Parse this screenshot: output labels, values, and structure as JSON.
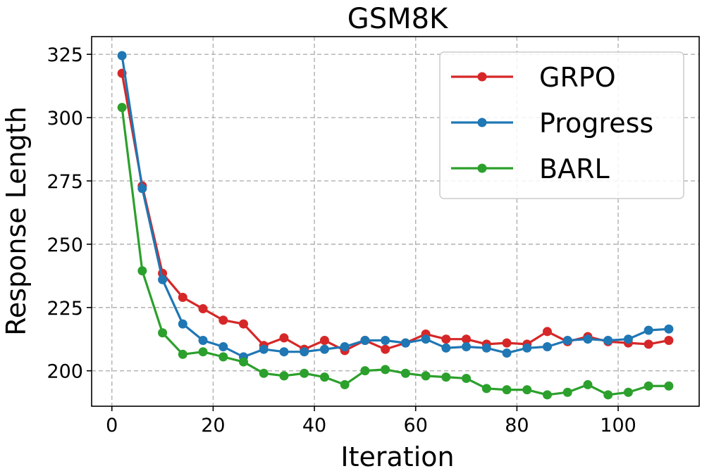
{
  "chart_data": {
    "type": "line",
    "title": "GSM8K",
    "xlabel": "Iteration",
    "ylabel": "Response Length",
    "xlim": [
      -4,
      116
    ],
    "ylim": [
      186,
      332
    ],
    "xticks": [
      0,
      20,
      40,
      60,
      80,
      100
    ],
    "yticks": [
      200,
      225,
      250,
      275,
      300,
      325
    ],
    "grid": true,
    "legend_position": "top-right",
    "x": [
      2,
      6,
      10,
      14,
      18,
      22,
      26,
      30,
      34,
      38,
      42,
      46,
      50,
      54,
      58,
      62,
      66,
      70,
      74,
      78,
      82,
      86,
      90,
      94,
      98,
      102,
      106,
      110
    ],
    "series": [
      {
        "name": "GRPO",
        "color": "#d62728",
        "values": [
          317.5,
          273,
          238.5,
          229,
          224.5,
          220,
          218.5,
          210,
          213,
          208.5,
          212,
          208,
          212,
          208.5,
          211,
          214.5,
          212.5,
          212.5,
          210.5,
          211,
          210.5,
          215.5,
          211.5,
          213.5,
          211.5,
          211,
          210.5,
          212
        ]
      },
      {
        "name": "Progress",
        "color": "#1f77b4",
        "values": [
          324.5,
          272,
          236,
          218.5,
          212,
          209.5,
          205.5,
          208.5,
          207.5,
          207.5,
          208.5,
          209.5,
          212,
          212,
          211,
          212.5,
          209,
          209.5,
          209,
          207,
          209,
          209.5,
          212,
          212.5,
          212,
          212.5,
          216,
          216.5
        ]
      },
      {
        "name": "BARL",
        "color": "#2ca02c",
        "values": [
          304,
          239.5,
          215,
          206.5,
          207.5,
          205.5,
          203.5,
          199,
          198,
          199,
          197.5,
          194.5,
          200,
          200.5,
          199,
          198,
          197.5,
          197,
          193,
          192.5,
          192.5,
          190.5,
          191.5,
          194.5,
          190.5,
          191.5,
          194,
          194
        ]
      }
    ]
  }
}
